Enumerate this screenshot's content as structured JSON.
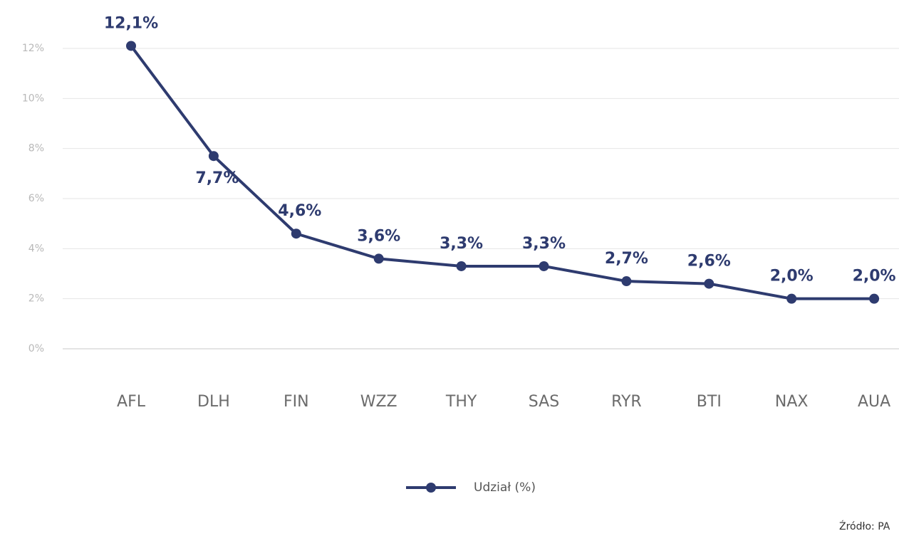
{
  "chart_data": {
    "type": "line",
    "categories": [
      "AFL",
      "DLH",
      "FIN",
      "WZZ",
      "THY",
      "SAS",
      "RYR",
      "BTI",
      "NAX",
      "AUA"
    ],
    "series": [
      {
        "name": "Udział (%)",
        "color": "#2e3b6f",
        "values": [
          12.1,
          7.7,
          4.6,
          3.6,
          3.3,
          3.3,
          2.7,
          2.6,
          2.0,
          2.0
        ],
        "value_labels": [
          "12,1%",
          "7,7%",
          "4,6%",
          "3,6%",
          "3,3%",
          "3,3%",
          "2,7%",
          "2,6%",
          "2,0%",
          "2,0%"
        ]
      }
    ],
    "ylim": [
      0,
      12
    ],
    "yticks": [
      {
        "value": 0,
        "label": "0%"
      },
      {
        "value": 2,
        "label": "2%"
      },
      {
        "value": 4,
        "label": "4%"
      },
      {
        "value": 6,
        "label": "6%"
      },
      {
        "value": 8,
        "label": "8%"
      },
      {
        "value": 10,
        "label": "10%"
      },
      {
        "value": 12,
        "label": "12%"
      }
    ],
    "grid": true,
    "legend": "bottom",
    "source": "Źródło: PA"
  }
}
